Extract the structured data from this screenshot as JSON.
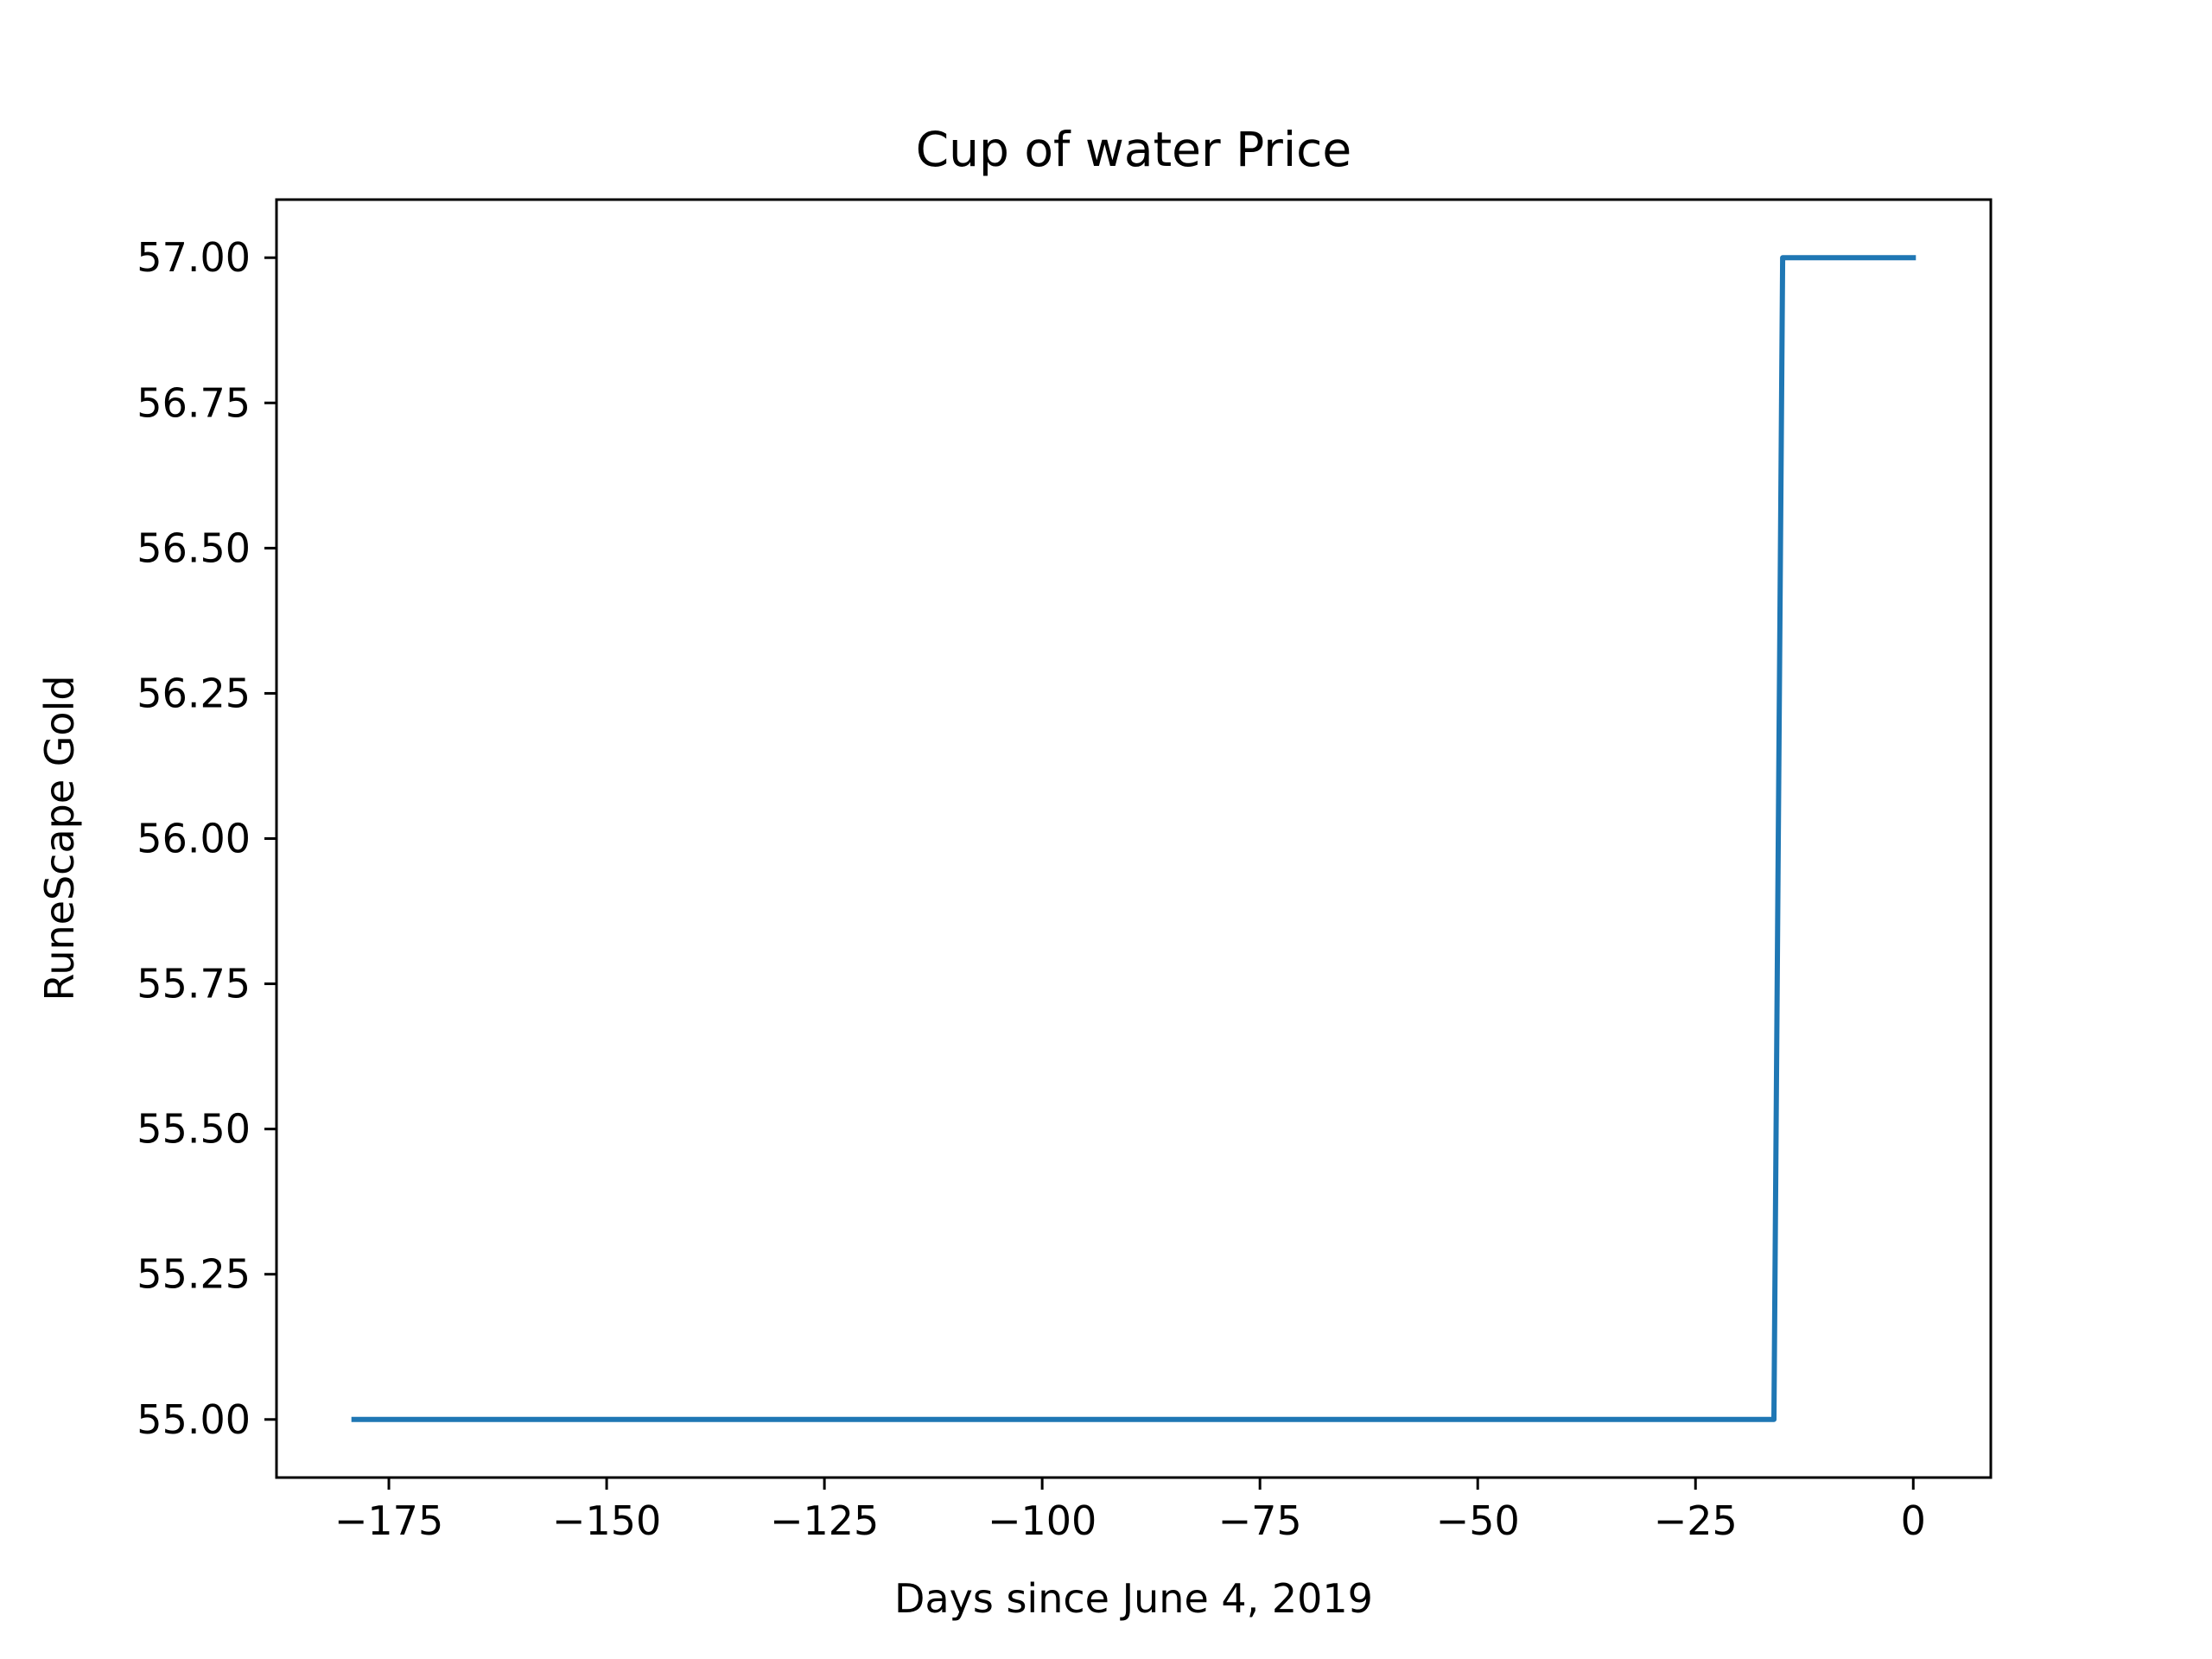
{
  "chart_data": {
    "type": "line",
    "title": "Cup of water Price",
    "xlabel": "Days since June 4, 2019",
    "ylabel": "RuneScape Gold",
    "xlim": [
      -187.9,
      8.9
    ],
    "ylim": [
      54.9,
      57.1
    ],
    "x_ticks": [
      -175,
      -150,
      -125,
      -100,
      -75,
      -50,
      -25,
      0
    ],
    "x_tick_labels": [
      "−175",
      "−150",
      "−125",
      "−100",
      "−75",
      "−50",
      "−25",
      "0"
    ],
    "y_ticks": [
      55.0,
      55.25,
      55.5,
      55.75,
      56.0,
      56.25,
      56.5,
      56.75,
      57.0
    ],
    "y_tick_labels": [
      "55.00",
      "55.25",
      "55.50",
      "55.75",
      "56.00",
      "56.25",
      "56.50",
      "56.75",
      "57.00"
    ],
    "grid": false,
    "series": [
      {
        "color": "#1f77b4",
        "points": [
          {
            "x": -179,
            "y": 55
          },
          {
            "x": -16,
            "y": 55
          },
          {
            "x": -15,
            "y": 57
          },
          {
            "x": 0,
            "y": 57
          }
        ]
      }
    ]
  }
}
